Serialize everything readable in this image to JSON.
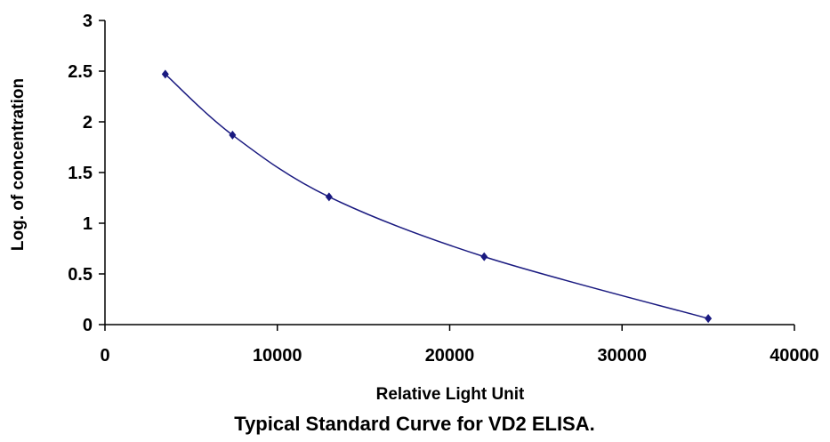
{
  "chart_data": {
    "type": "scatter",
    "title": "Typical Standard Curve for VD2 ELISA.",
    "xlabel": "Relative Light Unit",
    "ylabel": "Log. of concentration",
    "xlim": [
      0,
      40000
    ],
    "ylim": [
      0,
      3
    ],
    "xticks": [
      0,
      10000,
      20000,
      30000,
      40000
    ],
    "yticks": [
      0,
      0.5,
      1,
      1.5,
      2,
      2.5,
      3
    ],
    "ytick_labels": [
      "0",
      "0.5",
      "1",
      "1.5",
      "2",
      "2.5",
      "3"
    ],
    "grid": false,
    "legend": "none",
    "fit_line": "smooth curve",
    "series": [
      {
        "x": [
          3500,
          7400,
          13000,
          22000,
          35000
        ],
        "y": [
          2.47,
          1.87,
          1.26,
          0.67,
          0.06
        ]
      }
    ],
    "colors": {
      "series": "#1a1a80",
      "axes": "#000000"
    }
  }
}
